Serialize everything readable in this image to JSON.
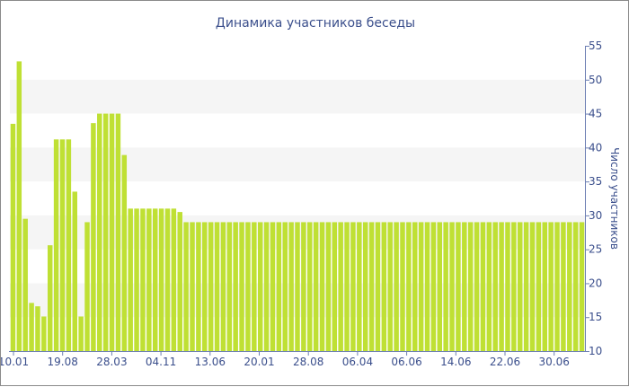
{
  "chart_data": {
    "type": "bar",
    "title": "Динамика участников беседы",
    "xlabel": "",
    "ylabel": "Число участников",
    "ylim": [
      10,
      55
    ],
    "y_ticks": [
      10,
      15,
      20,
      25,
      30,
      35,
      40,
      45,
      50,
      55
    ],
    "y_axis_side": "right",
    "x_tick_labels": [
      "10.01",
      "19.08",
      "28.03",
      "04.11",
      "13.06",
      "20.01",
      "28.08",
      "06.04",
      "06.06",
      "14.06",
      "22.06",
      "30.06"
    ],
    "bar_color": "#bfe034",
    "band_color": "#f5f5f5",
    "axis_color": "#6d7fb3",
    "grid": "alternating horizontal bands",
    "values": [
      43.5,
      52.7,
      29.5,
      17.1,
      16.6,
      15.1,
      25.6,
      41.2,
      41.2,
      41.2,
      33.5,
      15.1,
      29,
      43.6,
      45,
      45,
      45,
      45,
      38.9,
      31,
      31,
      31,
      31,
      31,
      31,
      31,
      31,
      30.5,
      29,
      29,
      29,
      29,
      29,
      29,
      29,
      29,
      29,
      29,
      29,
      29,
      29,
      29,
      29,
      29,
      29,
      29,
      29,
      29,
      29,
      29,
      29,
      29,
      29,
      29,
      29,
      29,
      29,
      29,
      29,
      29,
      29,
      29,
      29,
      29,
      29,
      29,
      29,
      29,
      29,
      29,
      29,
      29,
      29,
      29,
      29,
      29,
      29,
      29,
      29,
      29,
      29,
      29,
      29,
      29,
      29,
      29,
      29,
      29,
      29,
      29,
      29,
      29,
      29
    ]
  }
}
